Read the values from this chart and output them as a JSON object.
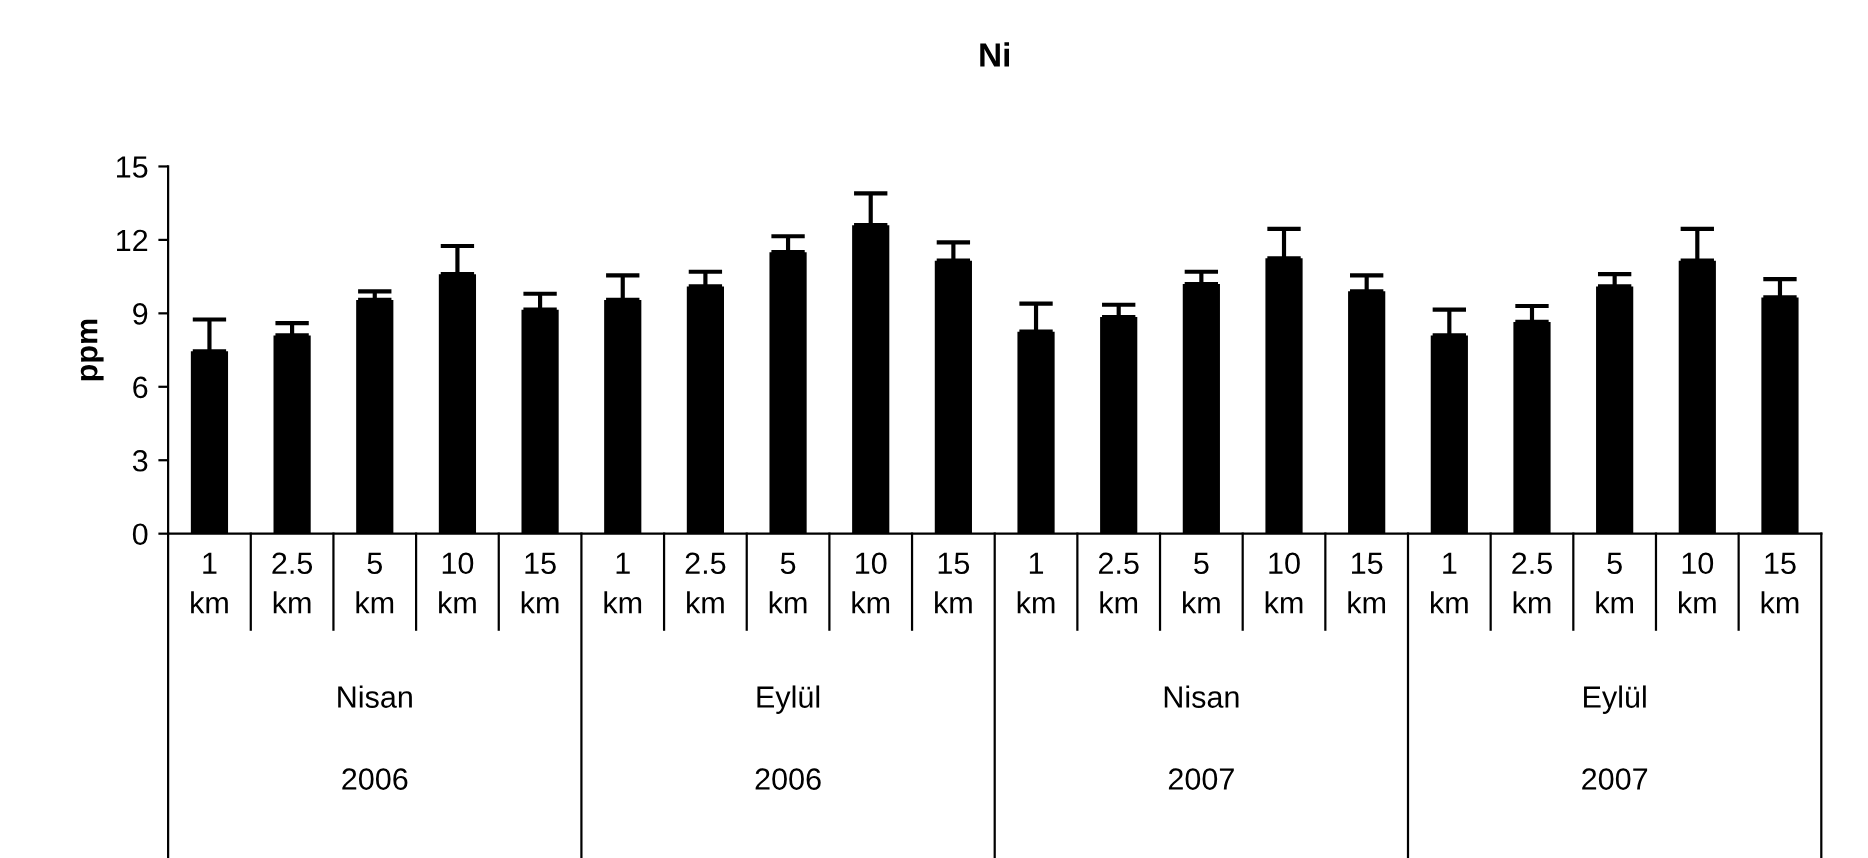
{
  "chart_data": {
    "type": "bar",
    "title": "Ni",
    "ylabel": "ppm",
    "categories": [
      "1 km",
      "2.5 km",
      "5 km",
      "10 km",
      "15 km",
      "1 km",
      "2.5 km",
      "5 km",
      "10 km",
      "15 km",
      "1 km",
      "2.5 km",
      "5 km",
      "10 km",
      "15 km",
      "1 km",
      "2.5 km",
      "5 km",
      "10 km",
      "15 km"
    ],
    "values": [
      7.45,
      8.1,
      9.55,
      10.6,
      9.15,
      9.55,
      10.1,
      11.5,
      12.6,
      11.15,
      8.25,
      8.85,
      10.2,
      11.25,
      9.9,
      8.1,
      8.65,
      10.1,
      11.15,
      9.65
    ],
    "errors": [
      1.3,
      0.5,
      0.35,
      1.15,
      0.65,
      1.0,
      0.6,
      0.65,
      1.3,
      0.75,
      1.15,
      0.5,
      0.5,
      1.2,
      0.65,
      1.05,
      0.65,
      0.5,
      1.3,
      0.75
    ],
    "color": "#000000",
    "annotations": [
      "Nisan",
      "Eylül",
      "Nisan",
      "Eylül",
      "2006",
      "2006",
      "2007",
      "2007"
    ],
    "ylim": [
      0,
      15
    ],
    "yticks": [
      0,
      3,
      6,
      9,
      12,
      15
    ],
    "grid": false,
    "legend": false
  }
}
